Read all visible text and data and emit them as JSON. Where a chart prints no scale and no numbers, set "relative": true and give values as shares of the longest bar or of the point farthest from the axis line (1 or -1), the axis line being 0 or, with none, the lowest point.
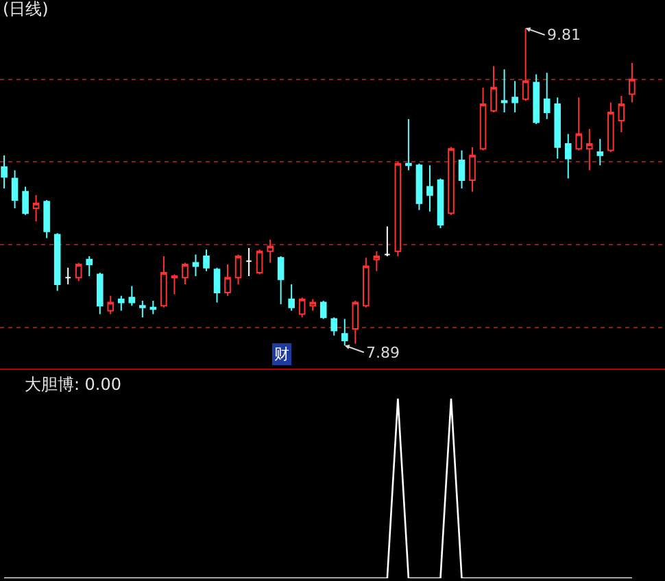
{
  "chart_data": [
    {
      "type": "candlestick",
      "title": "(日线)",
      "categories": [
        null,
        null,
        null,
        null,
        null,
        null,
        null,
        null,
        null,
        null,
        null,
        null,
        null,
        null,
        null,
        null,
        null,
        null,
        null,
        null,
        null,
        null,
        null,
        null,
        null,
        null,
        null,
        null,
        null,
        null,
        null,
        null,
        null,
        null,
        null,
        null,
        null,
        null,
        null,
        null,
        null,
        null,
        null,
        null,
        null,
        null,
        null,
        null,
        null,
        null,
        null,
        null,
        null,
        null,
        null,
        null,
        null,
        null,
        null,
        null
      ],
      "ohlc": [
        [
          8.97,
          9.04,
          8.84,
          8.91
        ],
        [
          8.9,
          8.95,
          8.72,
          8.77
        ],
        [
          8.82,
          8.85,
          8.68,
          8.69
        ],
        [
          8.72,
          8.8,
          8.64,
          8.75
        ],
        [
          8.76,
          8.77,
          8.54,
          8.58
        ],
        [
          8.56,
          8.57,
          8.22,
          8.26
        ],
        [
          8.3,
          8.36,
          8.26,
          8.3
        ],
        [
          8.3,
          8.39,
          8.28,
          8.38
        ],
        [
          8.41,
          8.43,
          8.31,
          8.38
        ],
        [
          8.32,
          8.33,
          8.08,
          8.13
        ],
        [
          8.1,
          8.19,
          8.08,
          8.15
        ],
        [
          8.17,
          8.19,
          8.1,
          8.15
        ],
        [
          8.18,
          8.25,
          8.13,
          8.15
        ],
        [
          8.13,
          8.16,
          8.06,
          8.12
        ],
        [
          8.12,
          8.16,
          8.08,
          8.11
        ],
        [
          8.13,
          8.43,
          8.12,
          8.33
        ],
        [
          8.3,
          8.32,
          8.2,
          8.31
        ],
        [
          8.3,
          8.39,
          8.26,
          8.38
        ],
        [
          8.39,
          8.44,
          8.31,
          8.37
        ],
        [
          8.43,
          8.47,
          8.34,
          8.36
        ],
        [
          8.35,
          8.36,
          8.15,
          8.21
        ],
        [
          8.21,
          8.38,
          8.19,
          8.3
        ],
        [
          8.3,
          8.44,
          8.26,
          8.43
        ],
        [
          8.4,
          8.48,
          8.31,
          8.4
        ],
        [
          8.33,
          8.47,
          8.32,
          8.46
        ],
        [
          8.46,
          8.53,
          8.39,
          8.49
        ],
        [
          8.42,
          8.43,
          8.14,
          8.29
        ],
        [
          8.17,
          8.26,
          8.1,
          8.12
        ],
        [
          8.08,
          8.18,
          8.06,
          8.17
        ],
        [
          8.13,
          8.17,
          8.1,
          8.15
        ],
        [
          8.15,
          8.16,
          8.05,
          8.06
        ],
        [
          8.05,
          8.06,
          7.95,
          7.98
        ],
        [
          7.96,
          8.05,
          7.89,
          7.92
        ],
        [
          7.99,
          8.16,
          7.9,
          8.15
        ],
        [
          8.13,
          8.42,
          8.12,
          8.37
        ],
        [
          8.41,
          8.46,
          8.34,
          8.43
        ],
        [
          8.44,
          8.61,
          8.43,
          8.44
        ],
        [
          8.46,
          9.0,
          8.43,
          8.99
        ],
        [
          8.99,
          9.26,
          8.95,
          8.98
        ],
        [
          8.98,
          8.99,
          8.71,
          8.75
        ],
        [
          8.85,
          8.98,
          8.7,
          8.8
        ],
        [
          8.89,
          8.9,
          8.6,
          8.62
        ],
        [
          8.69,
          9.09,
          8.68,
          9.08
        ],
        [
          9.01,
          9.07,
          8.84,
          8.89
        ],
        [
          8.89,
          9.09,
          8.82,
          9.04
        ],
        [
          9.08,
          9.45,
          9.07,
          9.35
        ],
        [
          9.31,
          9.58,
          9.3,
          9.45
        ],
        [
          9.37,
          9.56,
          9.3,
          9.36
        ],
        [
          9.39,
          9.49,
          9.3,
          9.36
        ],
        [
          9.38,
          9.81,
          9.37,
          9.49
        ],
        [
          9.48,
          9.53,
          9.23,
          9.24
        ],
        [
          9.38,
          9.54,
          9.26,
          9.3
        ],
        [
          9.35,
          9.39,
          9.02,
          9.09
        ],
        [
          9.11,
          9.17,
          8.9,
          9.02
        ],
        [
          9.08,
          9.39,
          9.07,
          9.17
        ],
        [
          9.08,
          9.2,
          8.95,
          9.11
        ],
        [
          9.06,
          9.14,
          8.98,
          9.04
        ],
        [
          9.07,
          9.36,
          9.06,
          9.3
        ],
        [
          9.25,
          9.4,
          9.18,
          9.35
        ],
        [
          9.41,
          9.6,
          9.36,
          9.5
        ]
      ],
      "colors": [
        "#54ffff",
        "#54ffff",
        "#54ffff",
        "#ff3232",
        "#54ffff",
        "#54ffff",
        "#ffffff",
        "#ff3232",
        "#54ffff",
        "#54ffff",
        "#ff3232",
        "#54ffff",
        "#54ffff",
        "#54ffff",
        "#54ffff",
        "#ff3232",
        "#ff3232",
        "#ff3232",
        "#54ffff",
        "#54ffff",
        "#54ffff",
        "#ff3232",
        "#ff3232",
        "#ffffff",
        "#ff3232",
        "#ff3232",
        "#54ffff",
        "#54ffff",
        "#ff3232",
        "#ff3232",
        "#54ffff",
        "#54ffff",
        "#54ffff",
        "#ff3232",
        "#ff3232",
        "#ff3232",
        "#ffffff",
        "#ff3232",
        "#54ffff",
        "#54ffff",
        "#54ffff",
        "#54ffff",
        "#ff3232",
        "#54ffff",
        "#ff3232",
        "#ff3232",
        "#ff3232",
        "#54ffff",
        "#54ffff",
        "#ff3232",
        "#54ffff",
        "#54ffff",
        "#54ffff",
        "#54ffff",
        "#ff3232",
        "#ff3232",
        "#54ffff",
        "#ff3232",
        "#ff3232",
        "#ff3232"
      ],
      "ylim": [
        7.75,
        9.98
      ],
      "yticks": [
        {
          "value": 8.0,
          "label": null
        },
        {
          "value": 8.5,
          "label": null
        },
        {
          "value": 9.0,
          "label": null
        },
        {
          "value": 9.5,
          "label": null
        }
      ],
      "grid": "y",
      "annotations": [
        "9.81",
        "7.89",
        "财"
      ]
    },
    {
      "type": "line",
      "title": "大胆博: 0.00",
      "categories": [
        null,
        null,
        null,
        null,
        null,
        null,
        null,
        null,
        null,
        null,
        null,
        null,
        null,
        null,
        null,
        null,
        null,
        null,
        null,
        null,
        null,
        null,
        null,
        null,
        null,
        null,
        null,
        null,
        null,
        null,
        null,
        null,
        null,
        null,
        null,
        null,
        null,
        null,
        null,
        null,
        null,
        null,
        null,
        null,
        null,
        null,
        null,
        null,
        null,
        null,
        null,
        null,
        null,
        null,
        null,
        null,
        null,
        null,
        null,
        null
      ],
      "series": [
        {
          "color": "#ffffff",
          "values": [
            0,
            0,
            0,
            0,
            0,
            0,
            0,
            0,
            0,
            0,
            0,
            0,
            0,
            0,
            0,
            0,
            0,
            0,
            0,
            0,
            0,
            0,
            0,
            0,
            0,
            0,
            0,
            0,
            0,
            0,
            0,
            0,
            0,
            0,
            0,
            0,
            0,
            1,
            0,
            0,
            0,
            0,
            1,
            0,
            0,
            0,
            0,
            0,
            0,
            0,
            0,
            0,
            0,
            0,
            0,
            0,
            0,
            0,
            0,
            0
          ]
        }
      ],
      "relative": true
    }
  ]
}
